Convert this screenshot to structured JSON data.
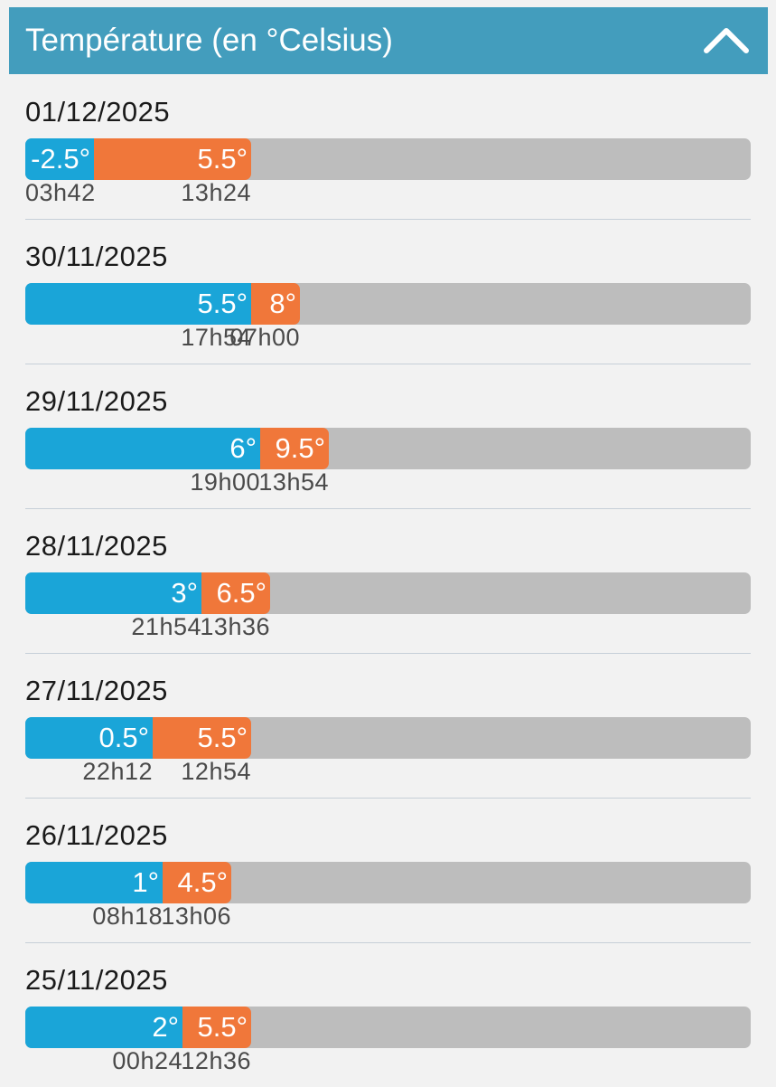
{
  "header": {
    "title": "Température (en °Celsius)",
    "collapse_icon": "chevron-up-icon",
    "background": "#439dbd"
  },
  "colors": {
    "min_bar": "#1aa5d8",
    "max_bar": "#f0773a",
    "track": "#bdbdbd"
  },
  "scale": {
    "min": -6,
    "max": 31
  },
  "days": [
    {
      "date": "01/12/2025",
      "min_label": "-2.5°",
      "min_value": -2.5,
      "min_time": "03h42",
      "max_label": "5.5°",
      "max_value": 5.5,
      "max_time": "13h24"
    },
    {
      "date": "30/11/2025",
      "min_label": "5.5°",
      "min_value": 5.5,
      "min_time": "17h54",
      "max_label": "8°",
      "max_value": 8,
      "max_time": "07h00"
    },
    {
      "date": "29/11/2025",
      "min_label": "6°",
      "min_value": 6,
      "min_time": "19h00",
      "max_label": "9.5°",
      "max_value": 9.5,
      "max_time": "13h54"
    },
    {
      "date": "28/11/2025",
      "min_label": "3°",
      "min_value": 3,
      "min_time": "21h54",
      "max_label": "6.5°",
      "max_value": 6.5,
      "max_time": "13h36"
    },
    {
      "date": "27/11/2025",
      "min_label": "0.5°",
      "min_value": 0.5,
      "min_time": "22h12",
      "max_label": "5.5°",
      "max_value": 5.5,
      "max_time": "12h54"
    },
    {
      "date": "26/11/2025",
      "min_label": "1°",
      "min_value": 1,
      "min_time": "08h18",
      "max_label": "4.5°",
      "max_value": 4.5,
      "max_time": "13h06"
    },
    {
      "date": "25/11/2025",
      "min_label": "2°",
      "min_value": 2,
      "min_time": "00h24",
      "max_label": "5.5°",
      "max_value": 5.5,
      "max_time": "12h36"
    }
  ]
}
